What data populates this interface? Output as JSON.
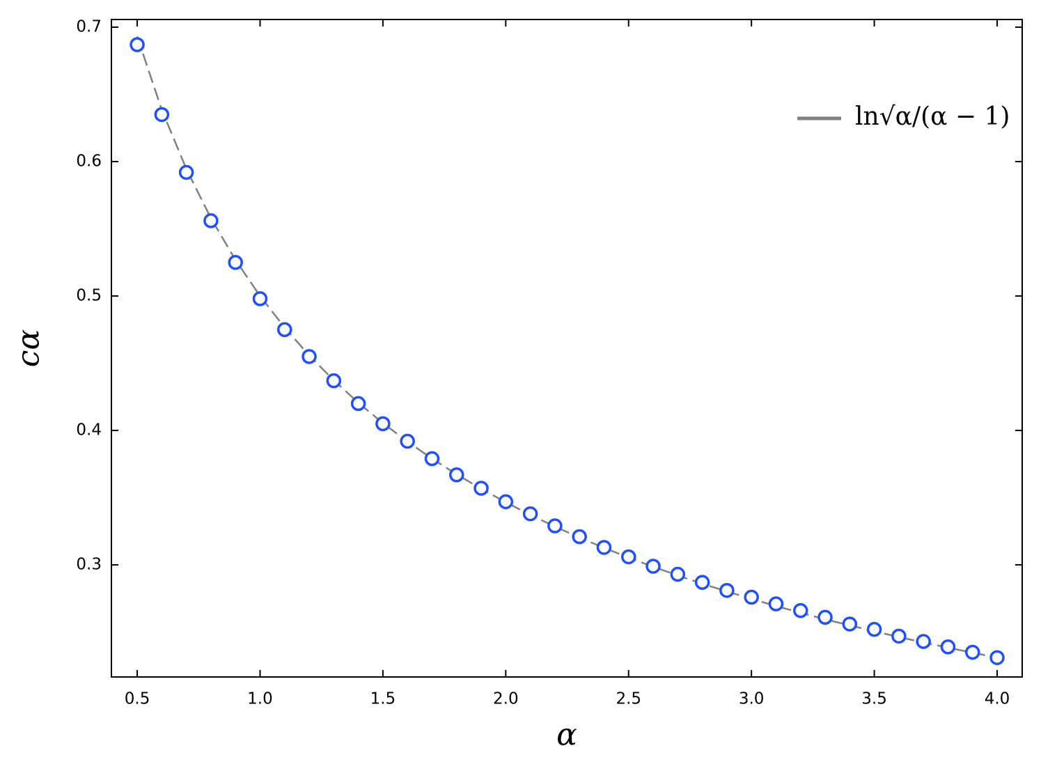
{
  "chart_data": {
    "type": "line",
    "x_label": "α",
    "y_label": "cα",
    "x": [
      0.5,
      0.6,
      0.7,
      0.8,
      0.9,
      1.0,
      1.1,
      1.2,
      1.3,
      1.4,
      1.5,
      1.6,
      1.7,
      1.8,
      1.9,
      2.0,
      2.1,
      2.2,
      2.3,
      2.4,
      2.5,
      2.6,
      2.7,
      2.8,
      2.9,
      3.0,
      3.1,
      3.2,
      3.3,
      3.4,
      3.5,
      3.6,
      3.7,
      3.8,
      3.9,
      4.0
    ],
    "series": [
      {
        "name": "ln√α/(α − 1)",
        "color": "#808080",
        "style": "dashed",
        "values": [
          0.6931,
          0.6385,
          0.5945,
          0.5579,
          0.5268,
          0.5,
          0.4766,
          0.4558,
          0.4373,
          0.4206,
          0.4055,
          0.3917,
          0.379,
          0.3674,
          0.3566,
          0.3466,
          0.3372,
          0.3285,
          0.3203,
          0.3127,
          0.3054,
          0.2986,
          0.2921,
          0.286,
          0.2802,
          0.2747,
          0.2694,
          0.2644,
          0.2595,
          0.255,
          0.2506,
          0.2463,
          0.2423,
          0.2384,
          0.2347,
          0.231
        ]
      },
      {
        "color": "#1f4fff",
        "style": "markers",
        "values": [
          0.687,
          0.635,
          0.592,
          0.556,
          0.525,
          0.498,
          0.475,
          0.455,
          0.437,
          0.42,
          0.405,
          0.392,
          0.379,
          0.367,
          0.357,
          0.347,
          0.338,
          0.329,
          0.321,
          0.313,
          0.306,
          0.299,
          0.293,
          0.287,
          0.281,
          0.276,
          0.271,
          0.266,
          0.261,
          0.256,
          0.252,
          0.247,
          0.243,
          0.239,
          0.235,
          0.231
        ]
      }
    ],
    "xlim": [
      0.395,
      4.102
    ],
    "ylim": [
      0.2166,
      0.7057
    ],
    "xticks": [
      {
        "value": 0.5,
        "label": "0.5"
      },
      {
        "value": 1.0,
        "label": "1.0"
      },
      {
        "value": 1.5,
        "label": "1.5"
      },
      {
        "value": 2.0,
        "label": "2.0"
      },
      {
        "value": 2.5,
        "label": "2.5"
      },
      {
        "value": 3.0,
        "label": "3.0"
      },
      {
        "value": 3.5,
        "label": "3.5"
      },
      {
        "value": 4.0,
        "label": "4.0"
      }
    ],
    "yticks": [
      0.3,
      0.4,
      0.5,
      0.6,
      0.7
    ],
    "legend": "upper right",
    "grid": false
  }
}
